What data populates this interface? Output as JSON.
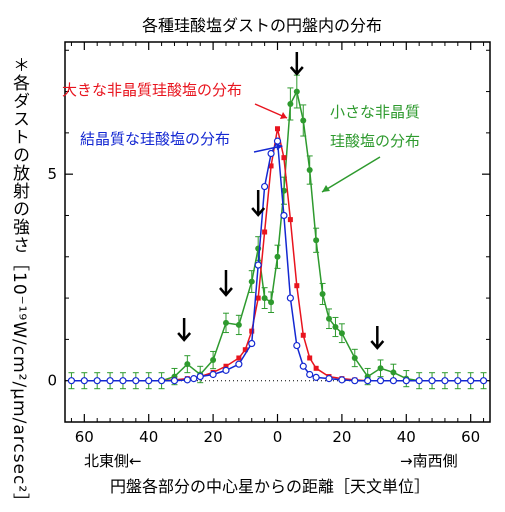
{
  "chart_data": {
    "type": "line",
    "title": "各種珪酸塩ダストの円盤内の分布",
    "xlabel": "円盤各部分の中心星からの距離［天文単位］",
    "ylabel": "＊各ダストの放射の強さ［10⁻¹⁹W/cm²/μm/arcsec²］",
    "x_ticks": [
      60,
      40,
      20,
      0,
      20,
      40,
      60
    ],
    "y_ticks": [
      0,
      5
    ],
    "xlim": [
      -66,
      66
    ],
    "ylim": [
      -1,
      8.2
    ],
    "direction_left": "北東側←",
    "direction_right": "→南西側",
    "zero_line": "dotted",
    "arrows_x": [
      -29,
      -16,
      -6,
      6,
      31
    ],
    "series": [
      {
        "name": "大きな非晶質珪酸塩の分布",
        "color": "#e8141e",
        "marker": "square",
        "x": [
          -64,
          -60,
          -56,
          -52,
          -48,
          -44,
          -40,
          -36,
          -32,
          -28,
          -24,
          -20,
          -16,
          -12,
          -10,
          -8,
          -6,
          -4,
          -2,
          0,
          2,
          4,
          6,
          8,
          10,
          12,
          16,
          20,
          24,
          28,
          32,
          36,
          40,
          44,
          48,
          52,
          56,
          60,
          64
        ],
        "y": [
          0,
          0,
          0,
          0,
          0,
          0,
          0,
          0,
          0.02,
          0.05,
          0.1,
          0.2,
          0.35,
          0.55,
          0.75,
          1.2,
          2.0,
          3.6,
          5.2,
          6.1,
          5.4,
          3.9,
          2.3,
          1.1,
          0.55,
          0.3,
          0.1,
          0.05,
          0.02,
          0,
          0,
          0,
          0,
          0,
          0,
          0,
          0,
          0,
          0
        ]
      },
      {
        "name": "結晶質な珪酸塩の分布",
        "color": "#1428d2",
        "marker": "circle-open",
        "x": [
          -64,
          -60,
          -56,
          -52,
          -48,
          -44,
          -40,
          -36,
          -32,
          -28,
          -26,
          -24,
          -20,
          -16,
          -12,
          -8,
          -6,
          -4,
          -2,
          0,
          2,
          4,
          6,
          8,
          10,
          12,
          16,
          20,
          24,
          28,
          32,
          36,
          40,
          44,
          48,
          52,
          56,
          60,
          64
        ],
        "y": [
          0,
          0,
          0,
          0,
          0,
          0,
          0,
          0,
          0,
          0.02,
          0.05,
          0.1,
          0.15,
          0.25,
          0.4,
          0.9,
          2.8,
          4.7,
          5.5,
          5.8,
          4.0,
          2.0,
          0.85,
          0.35,
          0.15,
          0.08,
          0.05,
          0.02,
          0,
          0,
          0,
          0,
          0,
          0,
          0,
          0,
          0,
          0,
          0
        ]
      },
      {
        "name": "小さな非晶質珪酸塩の分布",
        "color": "#2e9a2e",
        "marker": "circle-filled",
        "x": [
          -64,
          -60,
          -56,
          -52,
          -48,
          -44,
          -40,
          -36,
          -32,
          -28,
          -24,
          -20,
          -16,
          -12,
          -8,
          -6,
          -4,
          -2,
          0,
          2,
          4,
          6,
          8,
          10,
          12,
          14,
          16,
          18,
          20,
          24,
          28,
          32,
          36,
          40,
          44,
          48,
          52,
          56,
          60,
          64
        ],
        "y": [
          0,
          0,
          0,
          0,
          0,
          0,
          0,
          0,
          0.1,
          0.4,
          0.15,
          0.5,
          1.4,
          1.35,
          2.4,
          3.2,
          2.0,
          1.9,
          3.0,
          4.6,
          6.7,
          7.0,
          6.3,
          5.1,
          3.4,
          2.1,
          1.5,
          1.3,
          1.15,
          0.55,
          0.1,
          0.3,
          0.2,
          0.05,
          0,
          0,
          0,
          0,
          0,
          0
        ]
      }
    ],
    "labels": {
      "red": "大きな非晶質珪酸塩の分布",
      "blue": "結晶質な珪酸塩の分布",
      "green_line1": "小さな非晶質",
      "green_line2": "珪酸塩の分布"
    }
  }
}
